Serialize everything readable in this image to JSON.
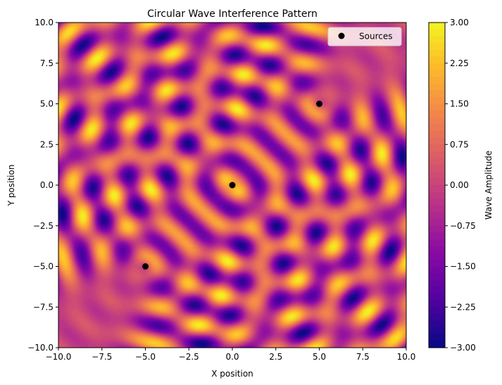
{
  "chart_data": {
    "type": "heatmap",
    "title": "Circular Wave Interference Pattern",
    "xlabel": "X position",
    "ylabel": "Y position",
    "xlim": [
      -10,
      10
    ],
    "ylim": [
      -10,
      10
    ],
    "x_ticks": [
      "−10.0",
      "−7.5",
      "−5.0",
      "−2.5",
      "0.0",
      "2.5",
      "5.0",
      "7.5",
      "10.0"
    ],
    "y_ticks": [
      "−10.0",
      "−7.5",
      "−5.0",
      "−2.5",
      "0.0",
      "2.5",
      "5.0",
      "7.5",
      "10.0"
    ],
    "x_tick_values": [
      -10,
      -7.5,
      -5,
      -2.5,
      0,
      2.5,
      5,
      7.5,
      10
    ],
    "y_tick_values": [
      -10,
      -7.5,
      -5,
      -2.5,
      0,
      2.5,
      5,
      7.5,
      10
    ],
    "sources": {
      "name": "Sources",
      "points": [
        {
          "x": -5,
          "y": -5
        },
        {
          "x": 0,
          "y": 0
        },
        {
          "x": 5,
          "y": 5
        }
      ],
      "color": "#000000"
    },
    "colormap": "plasma",
    "colorbar": {
      "label": "Wave Amplitude",
      "range": [
        -3,
        3
      ],
      "ticks": [
        "−3.00",
        "−2.25",
        "−1.50",
        "−0.75",
        "0.00",
        "0.75",
        "1.50",
        "2.25",
        "3.00"
      ],
      "tick_values": [
        -3,
        -2.25,
        -1.5,
        -0.75,
        0,
        0.75,
        1.5,
        2.25,
        3
      ]
    },
    "legend": {
      "position": "top-right",
      "entries": [
        "Sources"
      ]
    },
    "grid": false
  }
}
